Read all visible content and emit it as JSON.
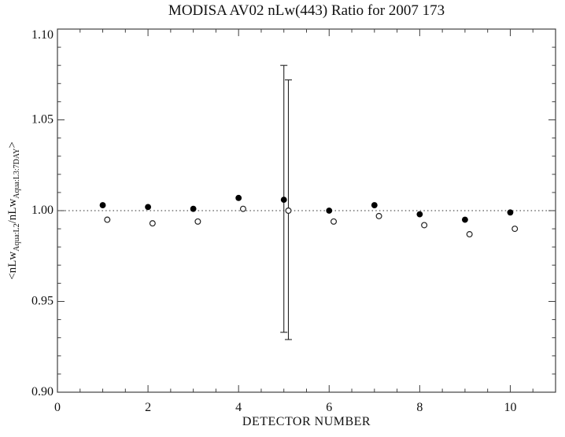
{
  "chart_data": {
    "type": "scatter",
    "title": "MODISA AV02 nLw(443) Ratio for 2007 173",
    "xlabel": "DETECTOR NUMBER",
    "ylabel": "<nLw_{Aqua:L2}/nLw_{Aqua:L3:7DAY}>",
    "ylabel_parts": [
      {
        "t": "<nLw",
        "sub": false
      },
      {
        "t": "Aqua:L2",
        "sub": true
      },
      {
        "t": "/nLw",
        "sub": false
      },
      {
        "t": "Aqua:L3:7DAY",
        "sub": true
      },
      {
        "t": ">",
        "sub": false
      }
    ],
    "xlim": [
      0,
      11
    ],
    "ylim": [
      0.9,
      1.1
    ],
    "x_ticks": [
      {
        "v": 0,
        "label": "0"
      },
      {
        "v": 2,
        "label": "2"
      },
      {
        "v": 4,
        "label": "4"
      },
      {
        "v": 6,
        "label": "6"
      },
      {
        "v": 8,
        "label": "8"
      },
      {
        "v": 10,
        "label": "10"
      }
    ],
    "x_minor_step": 0.5,
    "y_ticks": [
      {
        "v": 0.9,
        "label": "0.90"
      },
      {
        "v": 0.95,
        "label": "0.95"
      },
      {
        "v": 1.0,
        "label": "1.00"
      },
      {
        "v": 1.05,
        "label": "1.05"
      },
      {
        "v": 1.1,
        "label": "1.10"
      }
    ],
    "y_minor_step": 0.01,
    "grid": false,
    "legend": "none",
    "reference_line_y": 1.0,
    "x": [
      1,
      2,
      3,
      4,
      5,
      6,
      7,
      8,
      9,
      10
    ],
    "series": [
      {
        "name": "ratio-filled-circles",
        "marker": "filled-circle",
        "x_offset": 0.0,
        "values": [
          1.003,
          1.002,
          1.001,
          1.007,
          1.006,
          1.0,
          1.003,
          0.998,
          0.995,
          0.999
        ],
        "error_bars": [
          {
            "x": 5,
            "low": 0.933,
            "high": 1.08
          }
        ]
      },
      {
        "name": "ratio-open-circles",
        "marker": "open-circle",
        "x_offset": 0.1,
        "values": [
          0.995,
          0.993,
          0.994,
          1.001,
          1.0,
          0.994,
          0.997,
          0.992,
          0.987,
          0.99
        ],
        "error_bars": [
          {
            "x": 5,
            "low": 0.929,
            "high": 1.072
          }
        ]
      }
    ],
    "colors": {
      "foreground": "#000000",
      "axis": "#3f3f3f",
      "reference_line": "#555555",
      "background": "#ffffff"
    }
  }
}
